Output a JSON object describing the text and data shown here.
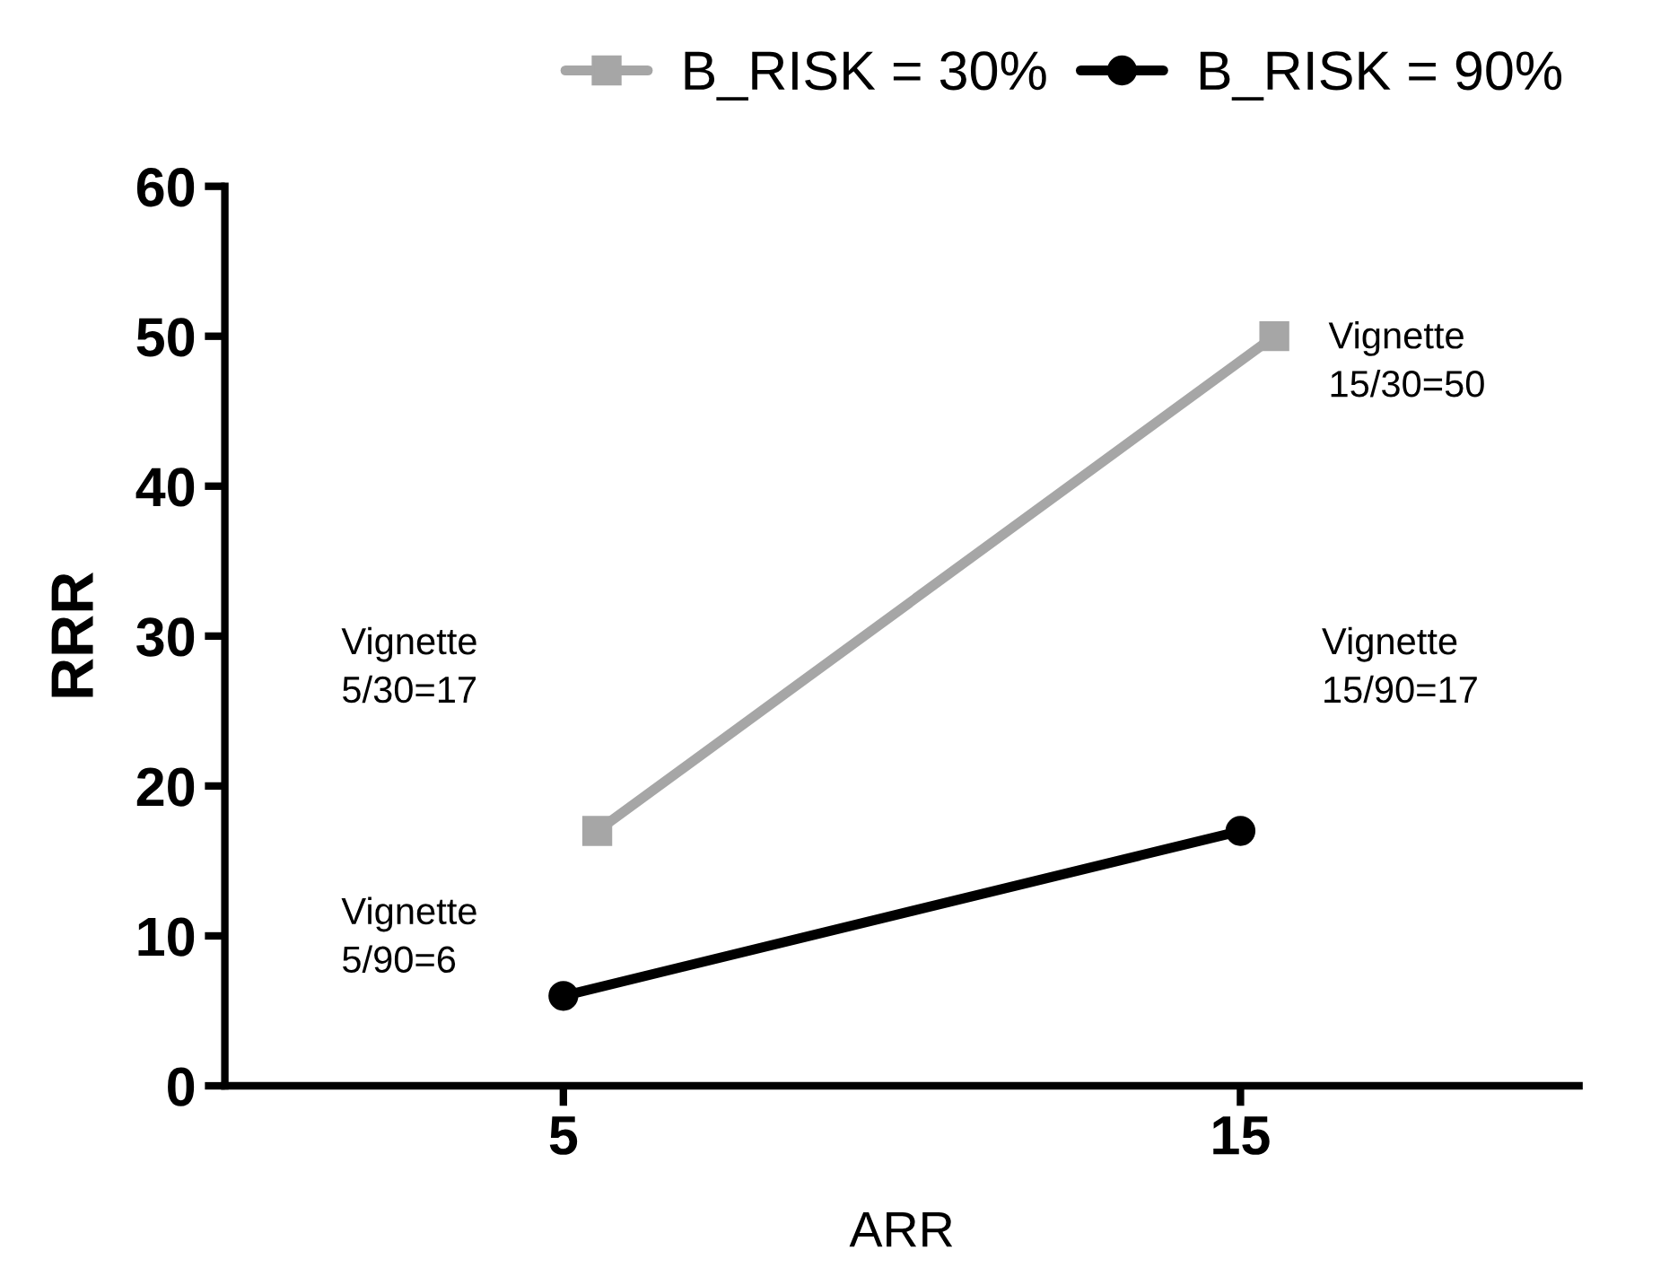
{
  "chart_data": {
    "type": "line",
    "xlabel": "ARR",
    "ylabel": "RRR",
    "xlim": [
      0,
      20
    ],
    "xticks": [
      5,
      15
    ],
    "ylim": [
      0,
      60
    ],
    "yticks": [
      0,
      10,
      20,
      30,
      40,
      50,
      60
    ],
    "series": [
      {
        "name": "B_RISK = 30%",
        "color": "#a6a6a6",
        "x": [
          5.5,
          15.5
        ],
        "values": [
          17,
          50
        ],
        "marker": "square"
      },
      {
        "name": "B_RISK = 90%",
        "color": "#000000",
        "x": [
          5,
          15
        ],
        "values": [
          6,
          17
        ],
        "marker": "circle"
      }
    ],
    "annotations": [
      "Vignette\n5/30=17",
      "Vignette\n5/90=6",
      "Vignette\n15/30=50",
      "Vignette\n15/90=17"
    ],
    "legend": "top",
    "grid": false,
    "line_style": "solid"
  }
}
